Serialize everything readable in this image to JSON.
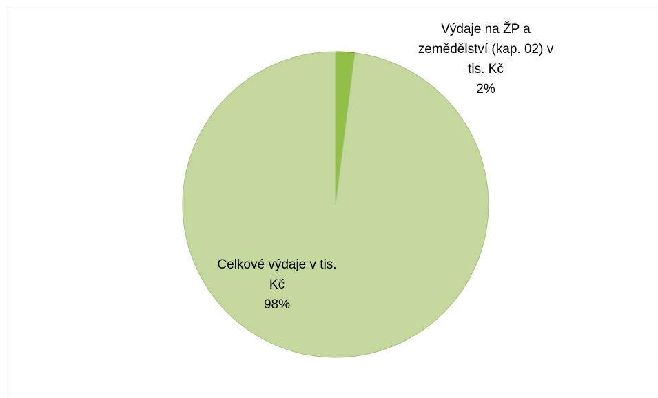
{
  "chart_data": {
    "type": "pie",
    "categories": [
      "Výdaje na ŽP a zemědělství (kap. 02) v tis. Kč",
      "Celkové výdaje v tis. Kč"
    ],
    "values": [
      2,
      98
    ],
    "value_labels": [
      "2%",
      "98%"
    ],
    "colors": [
      "#92c046",
      "#c4d89d"
    ]
  }
}
